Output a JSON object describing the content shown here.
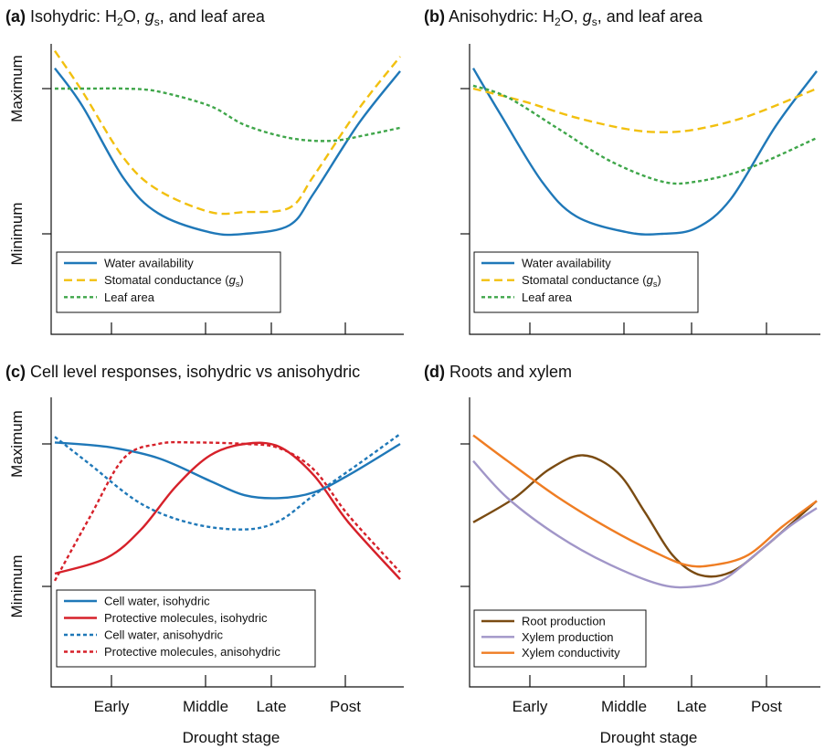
{
  "colors": {
    "water": "#1f78b8",
    "stomatal": "#f2c00f",
    "leaf": "#3fa64a",
    "protective": "#d6212a",
    "root": "#7a4b12",
    "xylem_prod": "#a196c8",
    "xylem_cond": "#ef7d23"
  },
  "chart_data": [
    {
      "id": "a",
      "type": "line",
      "title_prefix": "(a)",
      "title_main": "Isohydric: H",
      "title_sub2": "2",
      "title_mid": "O,",
      "title_gvar": "g",
      "title_gsub": "s",
      "title_end": ", and leaf area",
      "ylabels": [
        "Maximum",
        "Minimum"
      ],
      "xticks": [],
      "xlabel": "",
      "ylim": [
        0,
        100
      ],
      "x_range": [
        0,
        100
      ],
      "legend": [
        {
          "text": "Water availability",
          "style": "solid",
          "color_key": "water"
        },
        {
          "text": "Stomatal conductance (",
          "gvar": "g",
          "gsub": "s",
          "close": ")",
          "style": "dashed",
          "color_key": "stomatal"
        },
        {
          "text": "Leaf area",
          "style": "dotted",
          "color_key": "leaf"
        }
      ],
      "series": [
        {
          "name": "Water availability",
          "color_key": "water",
          "style": "solid",
          "x": [
            0,
            8,
            20,
            30,
            45,
            55,
            68,
            75,
            88,
            100
          ],
          "y": [
            114,
            88,
            38,
            14,
            1,
            0,
            6,
            28,
            76,
            112
          ]
        },
        {
          "name": "Stomatal conductance (gs)",
          "color_key": "stomatal",
          "style": "dashed",
          "x": [
            0,
            8,
            20,
            30,
            45,
            55,
            68,
            75,
            88,
            100
          ],
          "y": [
            126,
            98,
            52,
            30,
            15,
            15,
            18,
            40,
            86,
            122
          ]
        },
        {
          "name": "Leaf area",
          "color_key": "leaf",
          "style": "dotted",
          "x": [
            0,
            10,
            20,
            30,
            45,
            55,
            68,
            80,
            90,
            100
          ],
          "y": [
            100,
            100,
            100,
            98,
            88,
            75,
            66,
            64,
            68,
            73
          ]
        }
      ]
    },
    {
      "id": "b",
      "type": "line",
      "title_prefix": "(b)",
      "title_main": "Anisohydric: H",
      "title_sub2": "2",
      "title_mid": "O,",
      "title_gvar": "g",
      "title_gsub": "s",
      "title_end": ", and leaf area",
      "ylabels": [],
      "xticks": [],
      "xlabel": "",
      "ylim": [
        0,
        100
      ],
      "x_range": [
        0,
        100
      ],
      "legend": [
        {
          "text": "Water availability",
          "style": "solid",
          "color_key": "water"
        },
        {
          "text": "Stomatal conductance (",
          "gvar": "g",
          "gsub": "s",
          "close": ")",
          "style": "dashed",
          "color_key": "stomatal"
        },
        {
          "text": "Leaf area",
          "style": "dotted",
          "color_key": "leaf"
        }
      ],
      "series": [
        {
          "name": "Water availability",
          "color_key": "water",
          "style": "solid",
          "x": [
            0,
            8,
            20,
            30,
            45,
            55,
            65,
            75,
            88,
            100
          ],
          "y": [
            114,
            82,
            36,
            12,
            1,
            0,
            4,
            24,
            74,
            112
          ]
        },
        {
          "name": "Stomatal conductance (gs)",
          "color_key": "stomatal",
          "style": "dashed",
          "x": [
            0,
            15,
            30,
            45,
            55,
            65,
            80,
            100
          ],
          "y": [
            100,
            91,
            80,
            72,
            70,
            72,
            81,
            100
          ]
        },
        {
          "name": "Leaf area",
          "color_key": "leaf",
          "style": "dotted",
          "x": [
            0,
            10,
            25,
            40,
            55,
            65,
            80,
            100
          ],
          "y": [
            102,
            94,
            72,
            50,
            36,
            36,
            45,
            66
          ]
        }
      ]
    },
    {
      "id": "c",
      "type": "line",
      "title_prefix": "(c)",
      "title_main": "Cell level responses, isohydric vs anisohydric",
      "ylabels": [
        "Maximum",
        "Minimum"
      ],
      "xticks": [
        "Early",
        "Middle",
        "Late",
        "Post"
      ],
      "xlabel": "Drought stage",
      "ylim": [
        0,
        100
      ],
      "x_range": [
        0,
        100
      ],
      "legend": [
        {
          "text": "Cell water, isohydric",
          "style": "solid",
          "color_key": "water"
        },
        {
          "text": "Protective molecules, isohydric",
          "style": "solid",
          "color_key": "protective"
        },
        {
          "text": "Cell water, anisohydric",
          "style": "dotted",
          "color_key": "water"
        },
        {
          "text": "Protective molecules, anisohydric",
          "style": "dotted",
          "color_key": "protective"
        }
      ],
      "series": [
        {
          "name": "Cell water, isohydric",
          "color_key": "water",
          "style": "solid",
          "x": [
            0,
            15,
            30,
            45,
            55,
            65,
            75,
            85,
            100
          ],
          "y": [
            101,
            98,
            90,
            74,
            64,
            62,
            66,
            78,
            100
          ]
        },
        {
          "name": "Protective molecules, isohydric",
          "color_key": "protective",
          "style": "solid",
          "x": [
            0,
            15,
            25,
            35,
            45,
            55,
            65,
            75,
            85,
            100
          ],
          "y": [
            9,
            20,
            40,
            70,
            92,
            100,
            98,
            78,
            45,
            5
          ]
        },
        {
          "name": "Cell water, anisohydric",
          "color_key": "water",
          "style": "dotted",
          "x": [
            0,
            10,
            25,
            40,
            55,
            65,
            75,
            88,
            100
          ],
          "y": [
            105,
            86,
            58,
            44,
            40,
            46,
            64,
            86,
            107
          ]
        },
        {
          "name": "Protective molecules, anisohydric",
          "color_key": "protective",
          "style": "dotted",
          "x": [
            0,
            10,
            20,
            30,
            40,
            55,
            65,
            75,
            85,
            100
          ],
          "y": [
            4,
            48,
            90,
            100,
            101,
            100,
            97,
            82,
            50,
            10
          ]
        }
      ]
    },
    {
      "id": "d",
      "type": "line",
      "title_prefix": "(d)",
      "title_main": "Roots and xylem",
      "ylabels": [],
      "xticks": [
        "Early",
        "Middle",
        "Late",
        "Post"
      ],
      "xlabel": "Drought stage",
      "ylim": [
        0,
        100
      ],
      "x_range": [
        0,
        100
      ],
      "legend": [
        {
          "text": "Root production",
          "style": "solid",
          "color_key": "root"
        },
        {
          "text": "Xylem production",
          "style": "solid",
          "color_key": "xylem_prod"
        },
        {
          "text": "Xylem conductivity",
          "style": "solid",
          "color_key": "xylem_cond"
        }
      ],
      "series": [
        {
          "name": "Root production",
          "color_key": "root",
          "style": "solid",
          "x": [
            0,
            12,
            22,
            32,
            42,
            50,
            58,
            66,
            75,
            85,
            100
          ],
          "y": [
            45,
            62,
            82,
            92,
            80,
            52,
            22,
            8,
            10,
            28,
            60
          ]
        },
        {
          "name": "Xylem production",
          "color_key": "xylem_prod",
          "style": "solid",
          "x": [
            0,
            10,
            25,
            40,
            55,
            65,
            73,
            82,
            92,
            100
          ],
          "y": [
            88,
            62,
            35,
            15,
            1,
            0,
            5,
            22,
            42,
            55
          ]
        },
        {
          "name": "Xylem conductivity",
          "color_key": "xylem_cond",
          "style": "solid",
          "x": [
            0,
            10,
            25,
            40,
            52,
            62,
            70,
            80,
            90,
            100
          ],
          "y": [
            106,
            88,
            62,
            40,
            25,
            15,
            15,
            22,
            42,
            60
          ]
        }
      ]
    }
  ]
}
